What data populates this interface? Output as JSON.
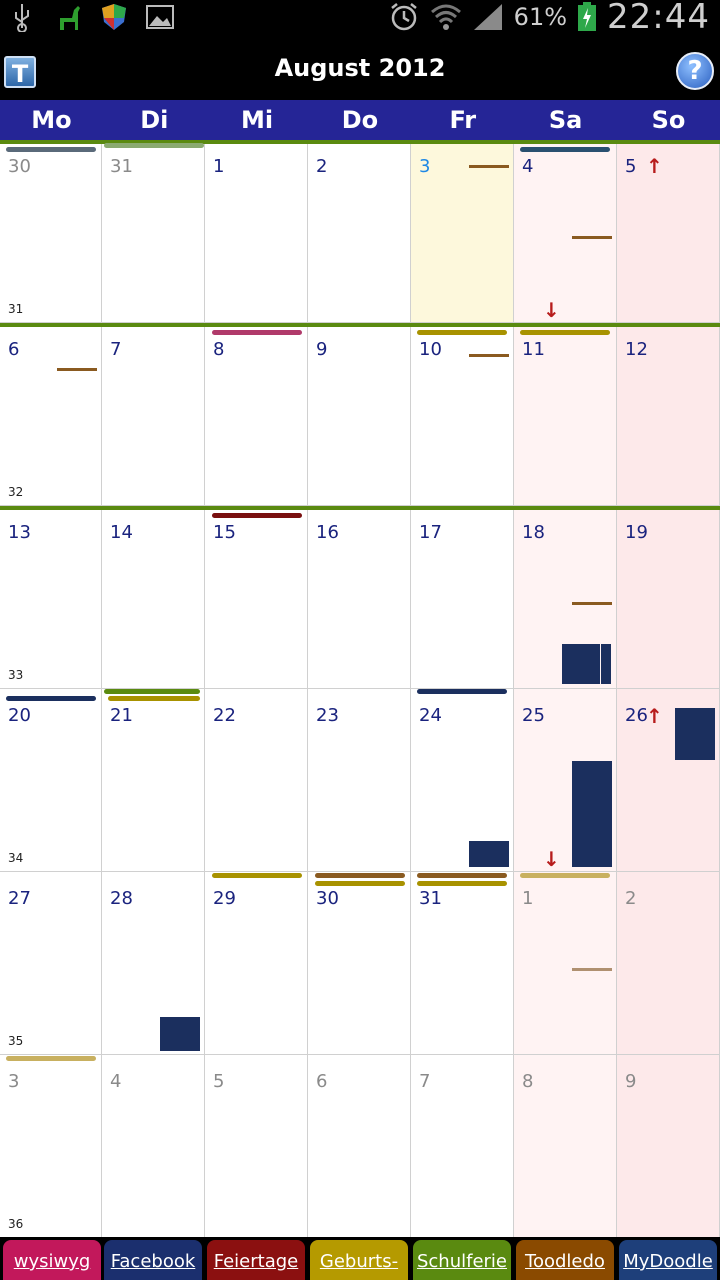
{
  "status_bar": {
    "left_icons": [
      "usb-icon",
      "llama-icon",
      "shield-icon",
      "image-icon"
    ],
    "right_icons": [
      "alarm-icon",
      "wifi-icon",
      "signal-icon",
      "battery-icon"
    ],
    "battery_percent": "61%",
    "clock": "22:44"
  },
  "header": {
    "t_button_label": "T",
    "month_title": "August 2012",
    "help_label": "?"
  },
  "weekdays": [
    "Mo",
    "Di",
    "Mi",
    "Do",
    "Fr",
    "Sa",
    "So"
  ],
  "weeks": [
    {
      "number": "31",
      "days": [
        "30",
        "31",
        "1",
        "2",
        "3",
        "4",
        "5"
      ]
    },
    {
      "number": "32",
      "days": [
        "6",
        "7",
        "8",
        "9",
        "10",
        "11",
        "12"
      ]
    },
    {
      "number": "33",
      "days": [
        "13",
        "14",
        "15",
        "16",
        "17",
        "18",
        "19"
      ]
    },
    {
      "number": "34",
      "days": [
        "20",
        "21",
        "22",
        "23",
        "24",
        "25",
        "26"
      ]
    },
    {
      "number": "35",
      "days": [
        "27",
        "28",
        "29",
        "30",
        "31",
        "1",
        "2"
      ]
    },
    {
      "number": "36",
      "days": [
        "3",
        "4",
        "5",
        "6",
        "7",
        "8",
        "9"
      ]
    }
  ],
  "calendar_tabs": [
    {
      "label": "wysiwyg",
      "color": "#c2185b"
    },
    {
      "label": "Facebook",
      "color": "#1b2f6e"
    },
    {
      "label": "Feiertage",
      "color": "#8b1010"
    },
    {
      "label": "Geburts-",
      "color": "#b59a00"
    },
    {
      "label": "Schulferie",
      "color": "#5a8a10"
    },
    {
      "label": "Toodledo",
      "color": "#8a4a00"
    },
    {
      "label": "MyDoodle",
      "color": "#1e3f7a"
    }
  ],
  "colors": {
    "weekday_header": "#252596",
    "week_separator": "#5a8a10",
    "today_bg": "#fdf8dc",
    "saturday_bg": "#fff3f3",
    "sunday_bg": "#fde9ea"
  }
}
